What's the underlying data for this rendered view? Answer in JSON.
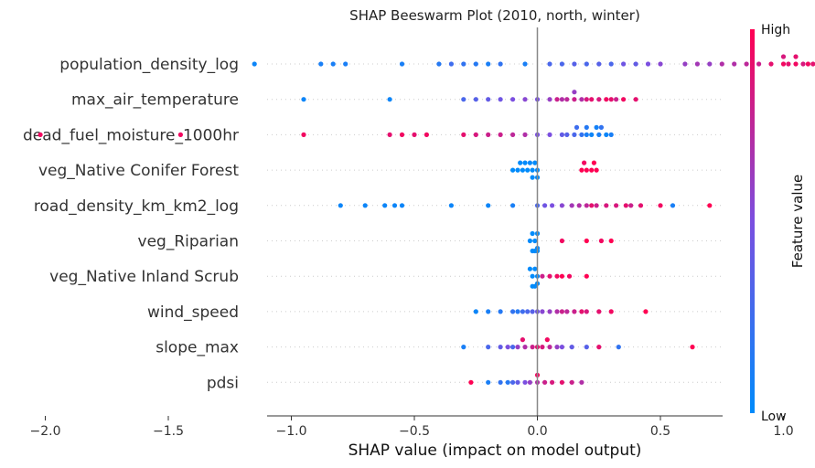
{
  "chart_data": {
    "type": "scatter",
    "title": "SHAP Beeswarm Plot (2010, north, winter)",
    "xlabel": "SHAP value (impact on model output)",
    "xlim": [
      -2.2,
      1.5
    ],
    "xticks": [
      -2.0,
      -1.5,
      -1.0,
      -0.5,
      0.0,
      0.5,
      1.0
    ],
    "xtick_labels": [
      "−2.0",
      "−1.5",
      "−1.0",
      "−0.5",
      "0.0",
      "0.5",
      "1.0"
    ],
    "colorbar": {
      "label": "Feature value",
      "high": "High",
      "low": "Low",
      "low_color": "#008bfb",
      "high_color": "#ff0052"
    },
    "features": [
      {
        "name": "population_density_log",
        "points": [
          [
            -1.15,
            0.05
          ],
          [
            -0.88,
            0.1
          ],
          [
            -0.83,
            0.1
          ],
          [
            -0.78,
            0.1
          ],
          [
            -0.55,
            0.1
          ],
          [
            -0.4,
            0.15
          ],
          [
            -0.35,
            0.25
          ],
          [
            -0.3,
            0.2
          ],
          [
            -0.25,
            0.15
          ],
          [
            -0.2,
            0.1
          ],
          [
            -0.15,
            0.2
          ],
          [
            -0.05,
            0.1
          ],
          [
            0.05,
            0.3
          ],
          [
            0.1,
            0.3
          ],
          [
            0.15,
            0.35
          ],
          [
            0.2,
            0.3
          ],
          [
            0.25,
            0.35
          ],
          [
            0.3,
            0.3
          ],
          [
            0.35,
            0.45
          ],
          [
            0.4,
            0.4
          ],
          [
            0.45,
            0.5
          ],
          [
            0.5,
            0.55
          ],
          [
            0.6,
            0.6
          ],
          [
            0.65,
            0.65
          ],
          [
            0.7,
            0.6
          ],
          [
            0.75,
            0.7
          ],
          [
            0.8,
            0.7
          ],
          [
            0.85,
            0.75
          ],
          [
            0.9,
            0.8
          ],
          [
            0.95,
            0.9
          ],
          [
            1.0,
            0.95
          ],
          [
            1.02,
            0.9
          ],
          [
            1.05,
            0.95
          ],
          [
            1.08,
            0.85
          ],
          [
            1.1,
            0.95
          ],
          [
            1.12,
            0.9
          ],
          [
            1.15,
            0.95
          ],
          [
            1.18,
            0.9
          ],
          [
            1.2,
            1.0
          ],
          [
            1.25,
            0.95
          ],
          [
            1.28,
            0.9
          ],
          [
            1.32,
            0.95
          ],
          [
            1.0,
            0.85
          ],
          [
            1.05,
            0.9
          ],
          [
            1.15,
            0.85
          ]
        ]
      },
      {
        "name": "max_air_temperature",
        "points": [
          [
            -0.95,
            0.05
          ],
          [
            -0.6,
            0.05
          ],
          [
            -0.3,
            0.3
          ],
          [
            -0.25,
            0.35
          ],
          [
            -0.2,
            0.4
          ],
          [
            -0.15,
            0.45
          ],
          [
            -0.1,
            0.5
          ],
          [
            -0.05,
            0.55
          ],
          [
            0.0,
            0.5
          ],
          [
            0.05,
            0.6
          ],
          [
            0.1,
            0.7
          ],
          [
            0.12,
            0.75
          ],
          [
            0.15,
            0.8
          ],
          [
            0.18,
            0.7
          ],
          [
            0.2,
            0.85
          ],
          [
            0.22,
            0.9
          ],
          [
            0.25,
            0.85
          ],
          [
            0.3,
            0.9
          ],
          [
            0.35,
            0.95
          ],
          [
            0.4,
            0.9
          ],
          [
            0.15,
            0.6
          ],
          [
            0.08,
            0.8
          ],
          [
            0.28,
            0.95
          ],
          [
            0.32,
            0.8
          ]
        ]
      },
      {
        "name": "dead_fuel_moisture_1000hr",
        "points": [
          [
            -2.02,
            0.95
          ],
          [
            -1.45,
            0.95
          ],
          [
            -0.95,
            0.95
          ],
          [
            -0.6,
            0.9
          ],
          [
            -0.55,
            0.95
          ],
          [
            -0.5,
            0.9
          ],
          [
            -0.45,
            0.95
          ],
          [
            -0.3,
            0.9
          ],
          [
            -0.25,
            0.85
          ],
          [
            -0.2,
            0.8
          ],
          [
            -0.15,
            0.8
          ],
          [
            -0.1,
            0.75
          ],
          [
            -0.05,
            0.7
          ],
          [
            0.0,
            0.5
          ],
          [
            0.05,
            0.5
          ],
          [
            0.1,
            0.4
          ],
          [
            0.15,
            0.3
          ],
          [
            0.18,
            0.2
          ],
          [
            0.2,
            0.1
          ],
          [
            0.22,
            0.05
          ],
          [
            0.25,
            0.1
          ],
          [
            0.28,
            0.05
          ],
          [
            0.2,
            0.15
          ],
          [
            0.24,
            0.08
          ],
          [
            0.26,
            0.2
          ],
          [
            0.16,
            0.25
          ],
          [
            0.3,
            0.1
          ],
          [
            0.12,
            0.35
          ]
        ]
      },
      {
        "name": "veg_Native Conifer Forest",
        "points": [
          [
            -0.1,
            0.0
          ],
          [
            -0.08,
            0.0
          ],
          [
            -0.06,
            0.0
          ],
          [
            -0.04,
            0.0
          ],
          [
            -0.02,
            0.0
          ],
          [
            0.0,
            0.0
          ],
          [
            -0.03,
            0.02
          ],
          [
            -0.05,
            0.0
          ],
          [
            -0.01,
            0.0
          ],
          [
            -0.07,
            0.0
          ],
          [
            -0.02,
            0.0
          ],
          [
            0.0,
            0.0
          ],
          [
            0.18,
            1.0
          ],
          [
            0.2,
            1.0
          ],
          [
            0.22,
            1.0
          ],
          [
            0.24,
            1.0
          ],
          [
            0.19,
            0.95
          ],
          [
            0.23,
            1.0
          ]
        ]
      },
      {
        "name": "road_density_km_km2_log",
        "points": [
          [
            -0.8,
            0.05
          ],
          [
            -0.7,
            0.05
          ],
          [
            -0.62,
            0.05
          ],
          [
            -0.58,
            0.05
          ],
          [
            -0.55,
            0.05
          ],
          [
            -0.35,
            0.05
          ],
          [
            -0.2,
            0.05
          ],
          [
            -0.1,
            0.1
          ],
          [
            0.0,
            0.3
          ],
          [
            0.03,
            0.45
          ],
          [
            0.06,
            0.5
          ],
          [
            0.1,
            0.55
          ],
          [
            0.14,
            0.65
          ],
          [
            0.17,
            0.7
          ],
          [
            0.2,
            0.75
          ],
          [
            0.24,
            0.8
          ],
          [
            0.28,
            0.85
          ],
          [
            0.32,
            0.85
          ],
          [
            0.36,
            0.9
          ],
          [
            0.42,
            0.9
          ],
          [
            0.5,
            0.95
          ],
          [
            0.55,
            0.1
          ],
          [
            0.7,
            1.0
          ],
          [
            0.38,
            0.8
          ],
          [
            0.22,
            0.9
          ]
        ]
      },
      {
        "name": "veg_Riparian",
        "points": [
          [
            -0.01,
            0.0
          ],
          [
            -0.02,
            0.0
          ],
          [
            0.0,
            0.0
          ],
          [
            -0.03,
            0.0
          ],
          [
            0.0,
            0.02
          ],
          [
            -0.01,
            0.0
          ],
          [
            -0.02,
            0.0
          ],
          [
            0.0,
            0.0
          ],
          [
            0.1,
            0.95
          ],
          [
            0.2,
            1.0
          ],
          [
            0.26,
            0.95
          ],
          [
            0.3,
            1.0
          ]
        ]
      },
      {
        "name": "veg_Native Inland Scrub",
        "points": [
          [
            -0.02,
            0.0
          ],
          [
            -0.01,
            0.0
          ],
          [
            0.0,
            0.0
          ],
          [
            -0.03,
            0.0
          ],
          [
            0.0,
            0.0
          ],
          [
            -0.01,
            0.02
          ],
          [
            -0.02,
            0.0
          ],
          [
            0.02,
            0.8
          ],
          [
            0.05,
            0.9
          ],
          [
            0.08,
            0.95
          ],
          [
            0.1,
            1.0
          ],
          [
            0.13,
            0.95
          ],
          [
            0.2,
            1.0
          ]
        ]
      },
      {
        "name": "wind_speed",
        "points": [
          [
            -0.25,
            0.05
          ],
          [
            -0.2,
            0.1
          ],
          [
            -0.15,
            0.15
          ],
          [
            -0.1,
            0.2
          ],
          [
            -0.06,
            0.25
          ],
          [
            -0.04,
            0.3
          ],
          [
            -0.02,
            0.35
          ],
          [
            0.0,
            0.45
          ],
          [
            0.02,
            0.55
          ],
          [
            0.05,
            0.6
          ],
          [
            0.08,
            0.7
          ],
          [
            0.12,
            0.75
          ],
          [
            0.15,
            0.8
          ],
          [
            0.2,
            0.85
          ],
          [
            0.25,
            0.9
          ],
          [
            0.3,
            0.95
          ],
          [
            0.44,
            1.0
          ],
          [
            -0.08,
            0.15
          ],
          [
            0.1,
            0.8
          ],
          [
            0.18,
            0.9
          ]
        ]
      },
      {
        "name": "slope_max",
        "points": [
          [
            -0.3,
            0.1
          ],
          [
            -0.2,
            0.3
          ],
          [
            -0.15,
            0.4
          ],
          [
            -0.12,
            0.5
          ],
          [
            -0.1,
            0.3
          ],
          [
            -0.08,
            0.6
          ],
          [
            -0.05,
            0.7
          ],
          [
            -0.02,
            0.8
          ],
          [
            0.0,
            0.9
          ],
          [
            0.02,
            0.85
          ],
          [
            0.05,
            0.75
          ],
          [
            0.08,
            0.6
          ],
          [
            0.1,
            0.5
          ],
          [
            0.14,
            0.4
          ],
          [
            0.2,
            0.35
          ],
          [
            0.25,
            0.9
          ],
          [
            0.33,
            0.2
          ],
          [
            0.63,
            1.0
          ],
          [
            -0.06,
            0.9
          ],
          [
            0.04,
            0.95
          ]
        ]
      },
      {
        "name": "pdsi",
        "points": [
          [
            -0.27,
            1.0
          ],
          [
            -0.2,
            0.1
          ],
          [
            -0.15,
            0.2
          ],
          [
            -0.1,
            0.3
          ],
          [
            -0.08,
            0.4
          ],
          [
            -0.05,
            0.5
          ],
          [
            -0.03,
            0.6
          ],
          [
            0.0,
            0.7
          ],
          [
            0.03,
            0.8
          ],
          [
            0.06,
            0.85
          ],
          [
            0.1,
            0.9
          ],
          [
            0.14,
            0.8
          ],
          [
            0.18,
            0.7
          ],
          [
            -0.12,
            0.15
          ],
          [
            0.0,
            0.95
          ]
        ]
      }
    ]
  }
}
